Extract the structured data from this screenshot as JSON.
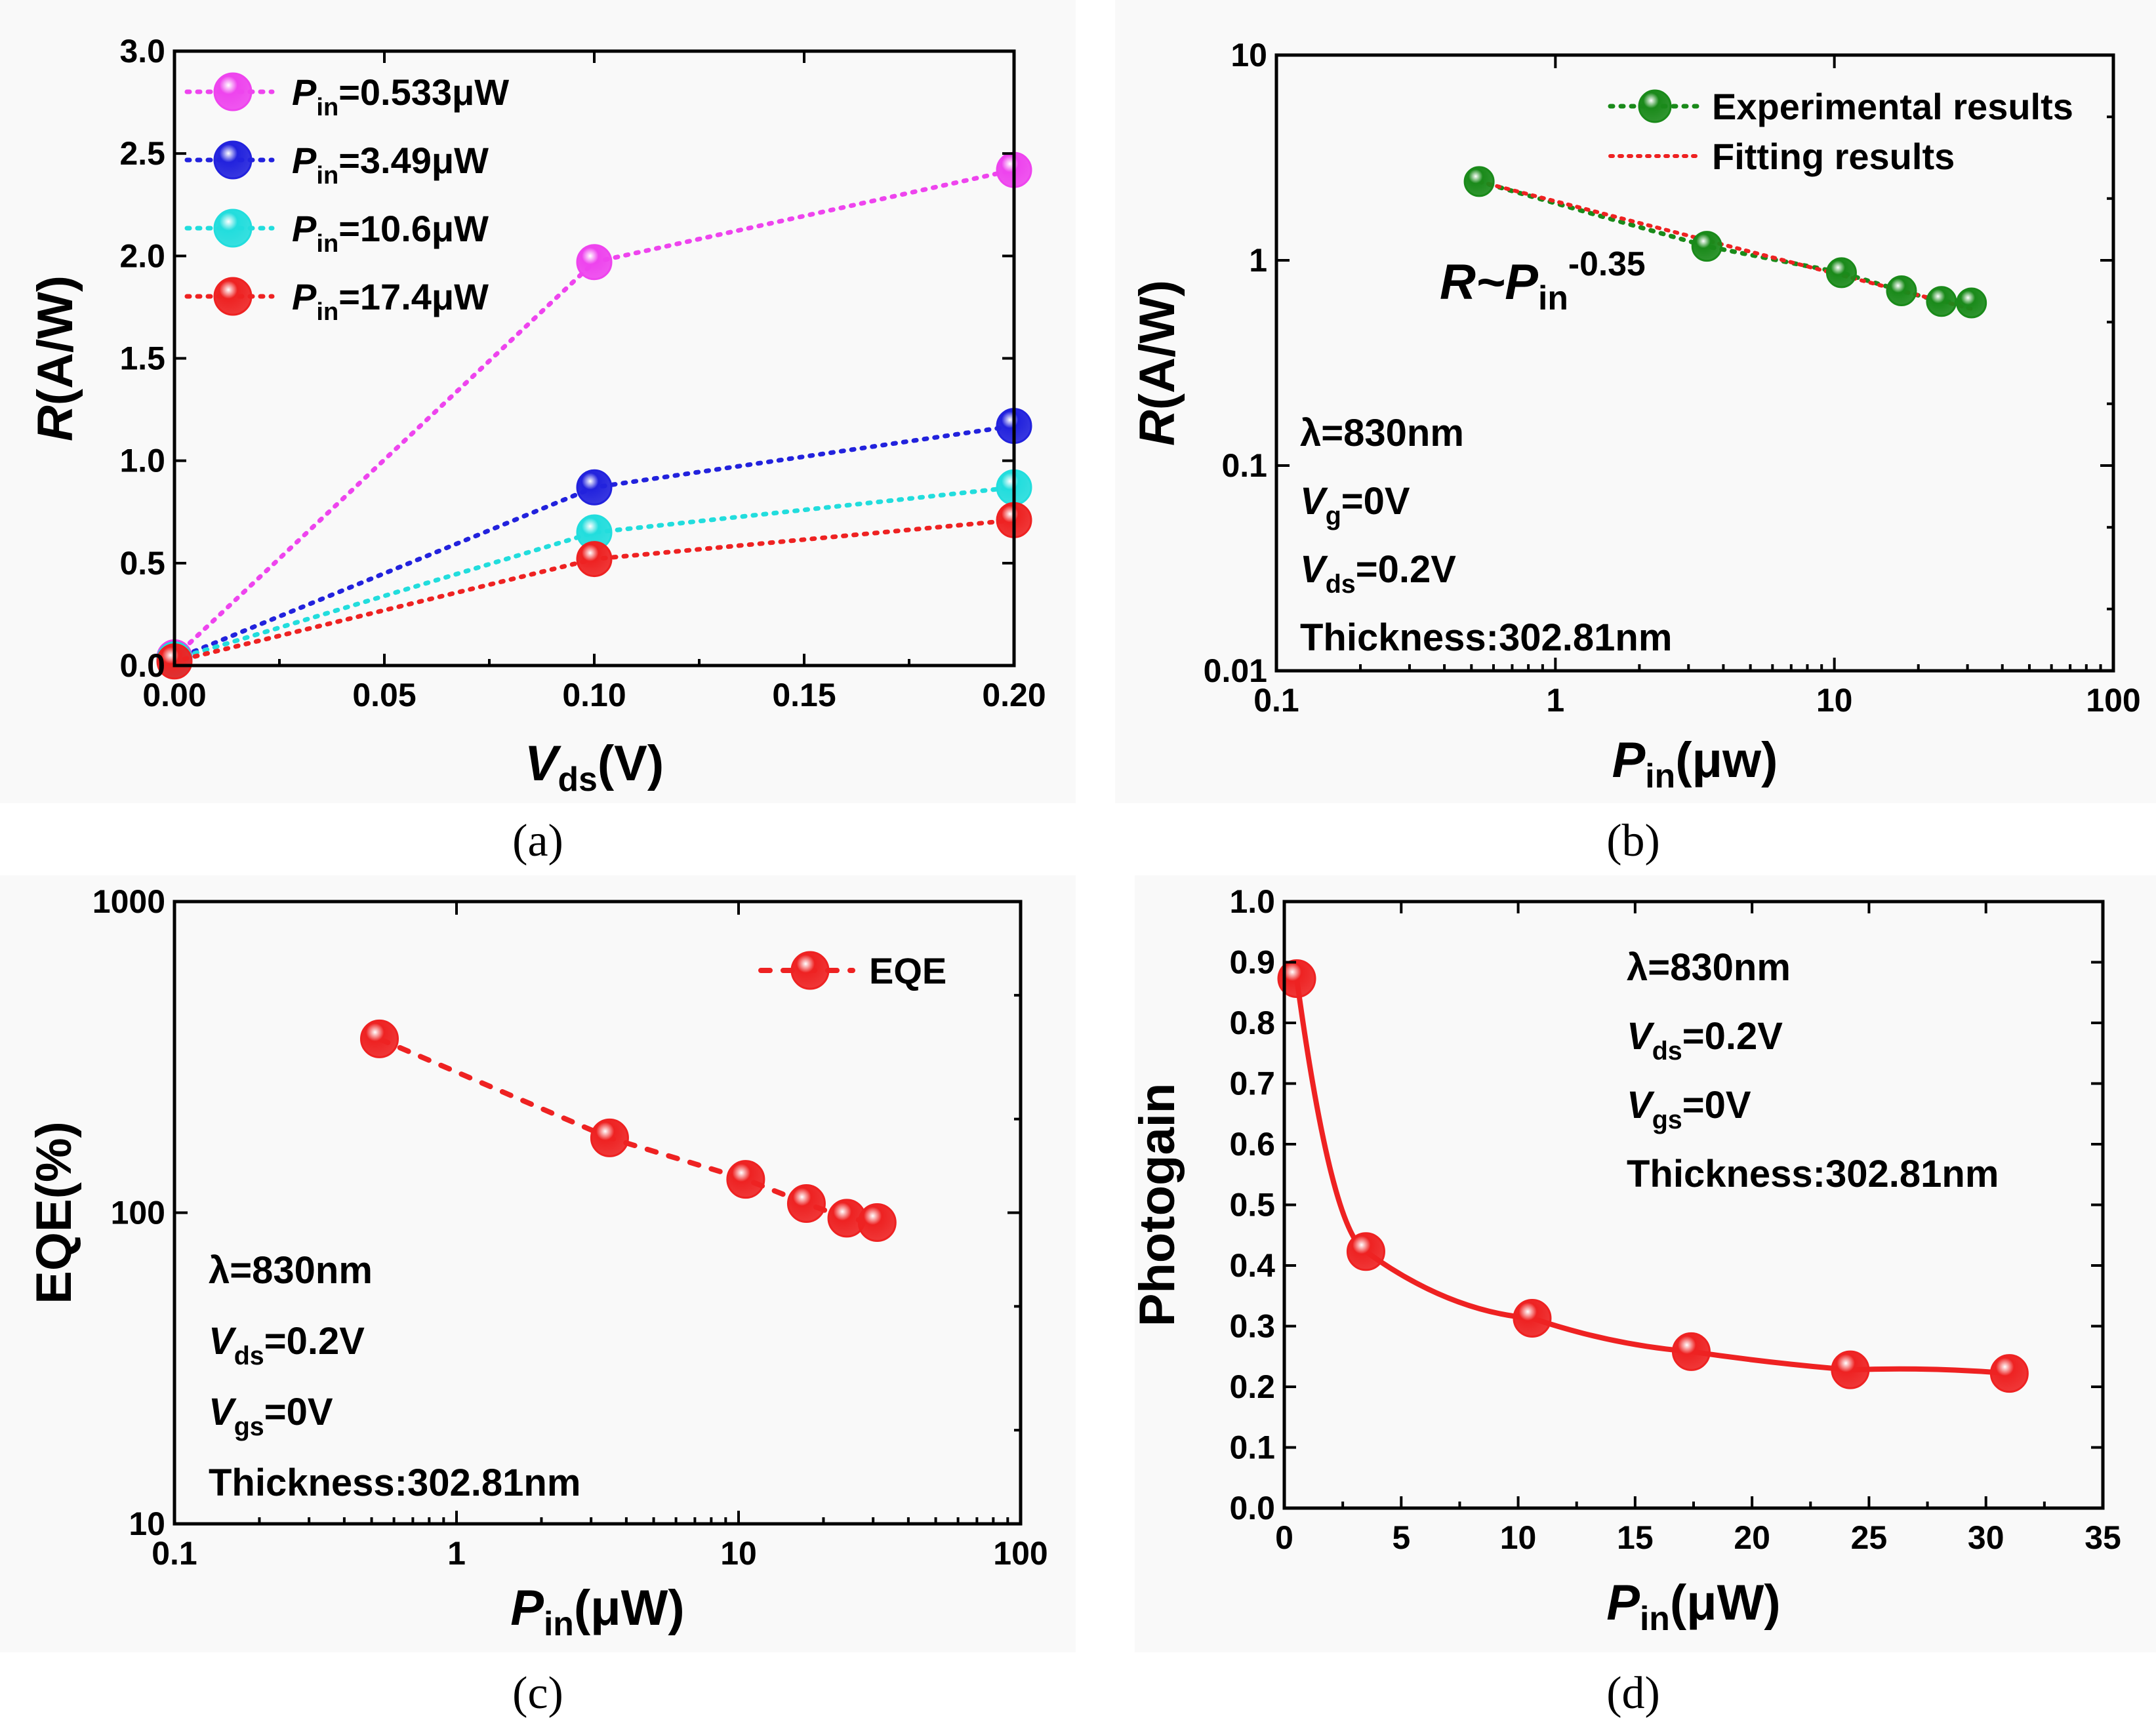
{
  "chart_data": [
    {
      "panel": "a",
      "caption": "(a)",
      "type": "line",
      "xlabel": {
        "main": "V",
        "sub": "ds",
        "unit": "(V)"
      },
      "ylabel": {
        "main": "R",
        "unit": "(A/W)"
      },
      "xlim": [
        0,
        0.2
      ],
      "ylim": [
        0,
        3.0
      ],
      "xticks": [
        "0.00",
        "0.05",
        "0.10",
        "0.15",
        "0.20"
      ],
      "yticks": [
        "0.0",
        "0.5",
        "1.0",
        "1.5",
        "2.0",
        "2.5",
        "3.0"
      ],
      "x": [
        0.0,
        0.1,
        0.2
      ],
      "series": [
        {
          "name": "P",
          "sub": "in",
          "rest": "=0.533μW",
          "color": "#ee44ee",
          "values": [
            0.04,
            1.97,
            2.42
          ]
        },
        {
          "name": "P",
          "sub": "in",
          "rest": "=3.49μW",
          "color": "#2222dd",
          "values": [
            0.03,
            0.87,
            1.17
          ]
        },
        {
          "name": "P",
          "sub": "in",
          "rest": "=10.6μW",
          "color": "#22dddd",
          "values": [
            0.03,
            0.65,
            0.87
          ]
        },
        {
          "name": "P",
          "sub": "in",
          "rest": "=17.4μW",
          "color": "#ee2222",
          "values": [
            0.02,
            0.52,
            0.71
          ]
        }
      ]
    },
    {
      "panel": "b",
      "caption": "(b)",
      "type": "scatter",
      "scale": "log-log",
      "xlabel": {
        "main": "P",
        "sub": "in",
        "unit": "(μw)"
      },
      "ylabel": {
        "main": "R",
        "unit": "(A/W)"
      },
      "xlim": [
        0.1,
        100
      ],
      "ylim": [
        0.01,
        10
      ],
      "xticks": [
        "0.1",
        "1",
        "10",
        "100"
      ],
      "yticks": [
        "0.01",
        "0.1",
        "1",
        "10"
      ],
      "series": [
        {
          "name": "Experimental results",
          "color": "#1a8a1a",
          "x": [
            0.533,
            3.49,
            10.6,
            17.4,
            24.2,
            31.0
          ],
          "values": [
            2.42,
            1.17,
            0.87,
            0.71,
            0.63,
            0.62
          ]
        },
        {
          "name": "Fitting results",
          "color": "#ee2222",
          "x": [
            0.533,
            31.0
          ],
          "values": [
            2.42,
            0.58
          ]
        }
      ],
      "formula": {
        "main": "R~P",
        "sub": "in",
        "sup": "-0.35"
      },
      "annotations": [
        {
          "main": "λ=830nm",
          "sub": "",
          "rest": ""
        },
        {
          "main": "V",
          "sub": "g",
          "rest": "=0V"
        },
        {
          "main": "V",
          "sub": "ds",
          "rest": "=0.2V"
        },
        {
          "main": "Thickness:302.81nm",
          "sub": "",
          "rest": ""
        }
      ]
    },
    {
      "panel": "c",
      "caption": "(c)",
      "type": "line",
      "scale": "log-log",
      "xlabel": {
        "main": "P",
        "sub": "in",
        "unit": "(μW)"
      },
      "ylabel": {
        "main": "EQE(%)",
        "unit": ""
      },
      "xlim": [
        0.1,
        100
      ],
      "ylim": [
        10,
        1000
      ],
      "xticks": [
        "0.1",
        "1",
        "10",
        "100"
      ],
      "yticks": [
        "10",
        "100",
        "1000"
      ],
      "series": [
        {
          "name": "EQE",
          "color": "#ee2222",
          "x": [
            0.533,
            3.49,
            10.6,
            17.4,
            24.2,
            31.0
          ],
          "values": [
            362,
            174,
            128,
            107,
            96,
            93
          ]
        }
      ],
      "annotations": [
        {
          "main": "λ=830nm",
          "sub": "",
          "rest": ""
        },
        {
          "main": "V",
          "sub": "ds",
          "rest": "=0.2V"
        },
        {
          "main": "V",
          "sub": "gs",
          "rest": "=0V"
        },
        {
          "main": "Thickness:302.81nm",
          "sub": "",
          "rest": ""
        }
      ]
    },
    {
      "panel": "d",
      "caption": "(d)",
      "type": "line",
      "xlabel": {
        "main": "P",
        "sub": "in",
        "unit": "(μW)"
      },
      "ylabel": {
        "main": "Photogain",
        "unit": ""
      },
      "xlim": [
        0,
        35
      ],
      "ylim": [
        0,
        1.0
      ],
      "xticks": [
        "0",
        "5",
        "10",
        "15",
        "20",
        "25",
        "30",
        "35"
      ],
      "yticks": [
        "0.0",
        "0.1",
        "0.2",
        "0.3",
        "0.4",
        "0.5",
        "0.6",
        "0.7",
        "0.8",
        "0.9",
        "1.0"
      ],
      "series": [
        {
          "name": "Photogain",
          "color": "#ee2222",
          "x": [
            0.533,
            3.49,
            10.6,
            17.4,
            24.2,
            31.0
          ],
          "values": [
            0.873,
            0.423,
            0.313,
            0.258,
            0.228,
            0.222
          ]
        }
      ],
      "annotations": [
        {
          "main": "λ=830nm",
          "sub": "",
          "rest": ""
        },
        {
          "main": "V",
          "sub": "ds",
          "rest": "=0.2V"
        },
        {
          "main": "V",
          "sub": "gs",
          "rest": "=0V"
        },
        {
          "main": "Thickness:302.81nm",
          "sub": "",
          "rest": ""
        }
      ]
    }
  ]
}
